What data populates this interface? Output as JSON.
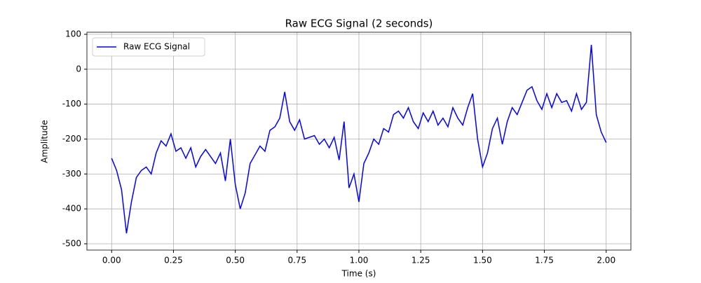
{
  "chart_data": {
    "type": "line",
    "title": "Raw ECG Signal (2 seconds)",
    "x_label": "Time (s)",
    "y_label": "Amplitude",
    "x": [
      0.0,
      0.02,
      0.04,
      0.06,
      0.08,
      0.1,
      0.12,
      0.14,
      0.16,
      0.18,
      0.2,
      0.22,
      0.24,
      0.26,
      0.28,
      0.3,
      0.32,
      0.34,
      0.36,
      0.38,
      0.4,
      0.42,
      0.44,
      0.46,
      0.48,
      0.5,
      0.52,
      0.54,
      0.56,
      0.58,
      0.6,
      0.62,
      0.64,
      0.66,
      0.68,
      0.7,
      0.72,
      0.74,
      0.76,
      0.78,
      0.8,
      0.82,
      0.84,
      0.86,
      0.88,
      0.9,
      0.92,
      0.94,
      0.96,
      0.98,
      1.0,
      1.02,
      1.04,
      1.06,
      1.08,
      1.1,
      1.12,
      1.14,
      1.16,
      1.18,
      1.2,
      1.22,
      1.24,
      1.26,
      1.28,
      1.3,
      1.32,
      1.34,
      1.36,
      1.38,
      1.4,
      1.42,
      1.44,
      1.46,
      1.48,
      1.5,
      1.52,
      1.54,
      1.56,
      1.58,
      1.6,
      1.62,
      1.64,
      1.66,
      1.68,
      1.7,
      1.72,
      1.74,
      1.76,
      1.78,
      1.8,
      1.82,
      1.84,
      1.86,
      1.88,
      1.9,
      1.92,
      1.94,
      1.96,
      1.98,
      2.0
    ],
    "series": [
      {
        "name": "Raw ECG Signal",
        "color": "#0000ff",
        "values": [
          -255,
          -290,
          -345,
          -470,
          -380,
          -310,
          -290,
          -280,
          -300,
          -240,
          -205,
          -220,
          -185,
          -235,
          -225,
          -255,
          -225,
          -280,
          -250,
          -230,
          -250,
          -270,
          -240,
          -320,
          -200,
          -330,
          -400,
          -355,
          -270,
          -245,
          -220,
          -235,
          -175,
          -165,
          -140,
          -65,
          -150,
          -175,
          -145,
          -200,
          -195,
          -190,
          -215,
          -200,
          -225,
          -195,
          -260,
          -150,
          -340,
          -300,
          -380,
          -270,
          -240,
          -200,
          -215,
          -170,
          -180,
          -130,
          -120,
          -140,
          -110,
          -150,
          -170,
          -125,
          -150,
          -120,
          -160,
          -140,
          -165,
          -110,
          -140,
          -160,
          -110,
          -70,
          -200,
          -280,
          -240,
          -170,
          -140,
          -215,
          -150,
          -110,
          -130,
          -95,
          -60,
          -50,
          -90,
          -115,
          -70,
          -110,
          -70,
          -95,
          -90,
          -120,
          -70,
          -115,
          -95,
          70,
          -130,
          -180,
          -210
        ]
      }
    ],
    "xlim": [
      -0.1,
      2.1
    ],
    "ylim": [
      -518,
      106
    ],
    "xticks": [
      {
        "value": 0,
        "label": "0.00"
      },
      {
        "value": 0.25,
        "label": "0.25"
      },
      {
        "value": 0.5,
        "label": "0.50"
      },
      {
        "value": 0.75,
        "label": "0.75"
      },
      {
        "value": 1,
        "label": "1.00"
      },
      {
        "value": 1.25,
        "label": "1.25"
      },
      {
        "value": 1.5,
        "label": "1.50"
      },
      {
        "value": 1.75,
        "label": "1.75"
      },
      {
        "value": 2,
        "label": "2.00"
      }
    ],
    "yticks": [
      -500,
      -400,
      -300,
      -200,
      -100,
      0,
      100
    ],
    "grid": true,
    "legend": "upper left"
  }
}
